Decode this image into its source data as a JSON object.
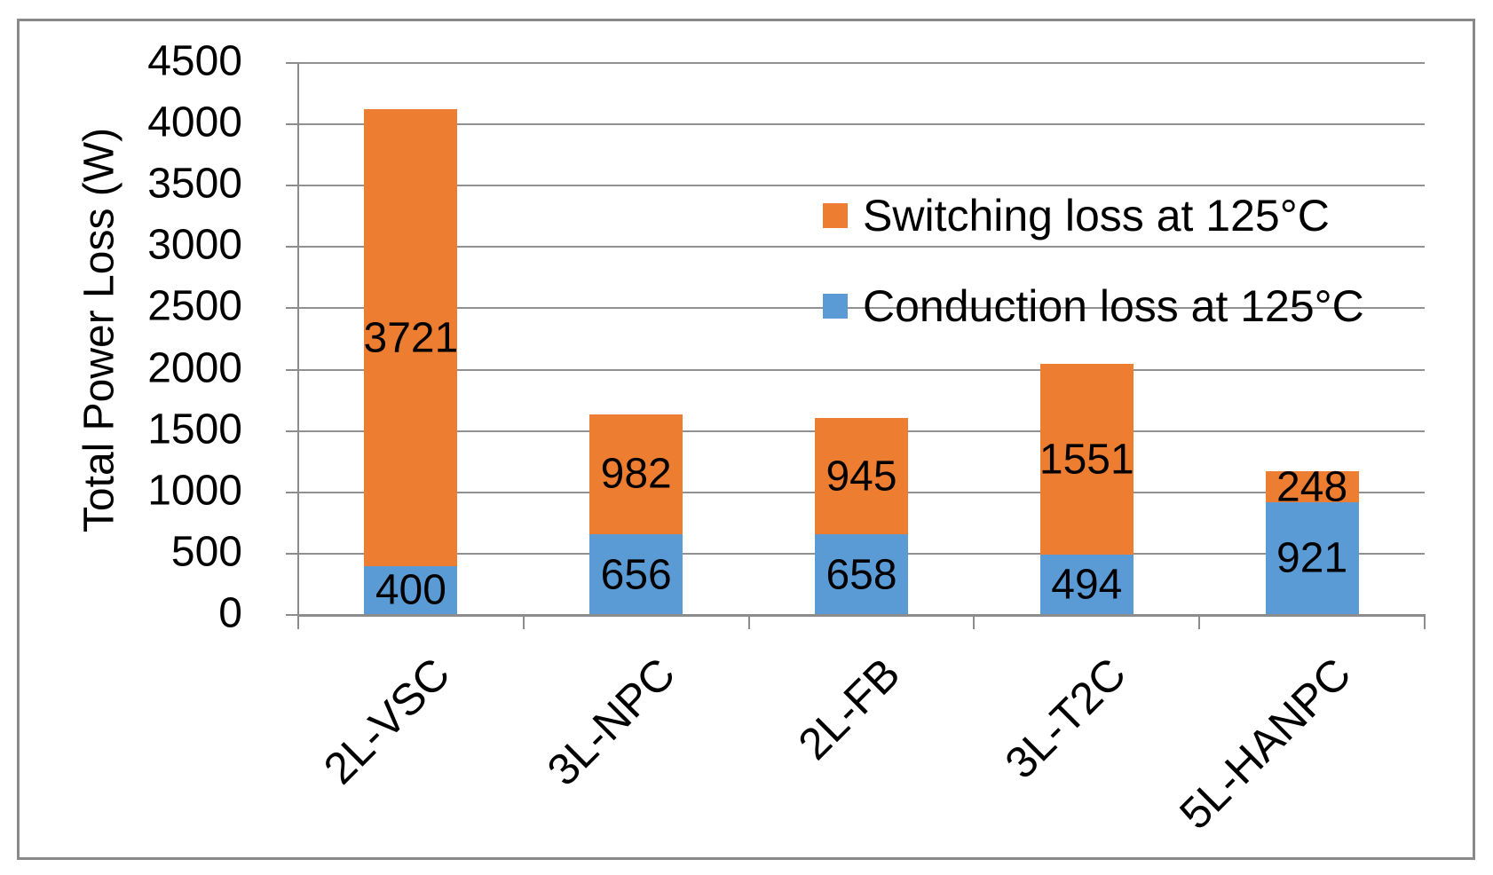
{
  "chart_data": {
    "type": "bar",
    "stacked": true,
    "title": "",
    "xlabel": "",
    "ylabel": "Total Power Loss (W)",
    "categories": [
      "2L-VSC",
      "3L-NPC",
      "2L-FB",
      "3L-T2C",
      "5L-HANPC"
    ],
    "series": [
      {
        "name": "Conduction loss at 125°C",
        "color": "#5B9BD5",
        "values": [
          400,
          656,
          658,
          494,
          921
        ]
      },
      {
        "name": "Switching loss at 125°C",
        "color": "#ED7D31",
        "values": [
          3721,
          982,
          945,
          1551,
          248
        ]
      }
    ],
    "totals": [
      4121,
      1638,
      1603,
      2045,
      1169
    ],
    "ylim": [
      0,
      4500
    ],
    "ytick_interval": 500,
    "yticks": [
      "0",
      "500",
      "1000",
      "1500",
      "2000",
      "2500",
      "3000",
      "3500",
      "4000",
      "4500"
    ],
    "grid": true,
    "data_labels": true,
    "legend_position": "upper-right-inside",
    "legend": {
      "entries": [
        {
          "label": "Switching loss at 125°C",
          "color": "#ED7D31",
          "swatch": "orange-square-icon"
        },
        {
          "label": "Conduction loss at 125°C",
          "color": "#5B9BD5",
          "swatch": "blue-square-icon"
        }
      ]
    },
    "colors": {
      "gridline": "#919191",
      "axis": "#8C8C8C",
      "border": "#898989",
      "text": "#000000"
    }
  }
}
